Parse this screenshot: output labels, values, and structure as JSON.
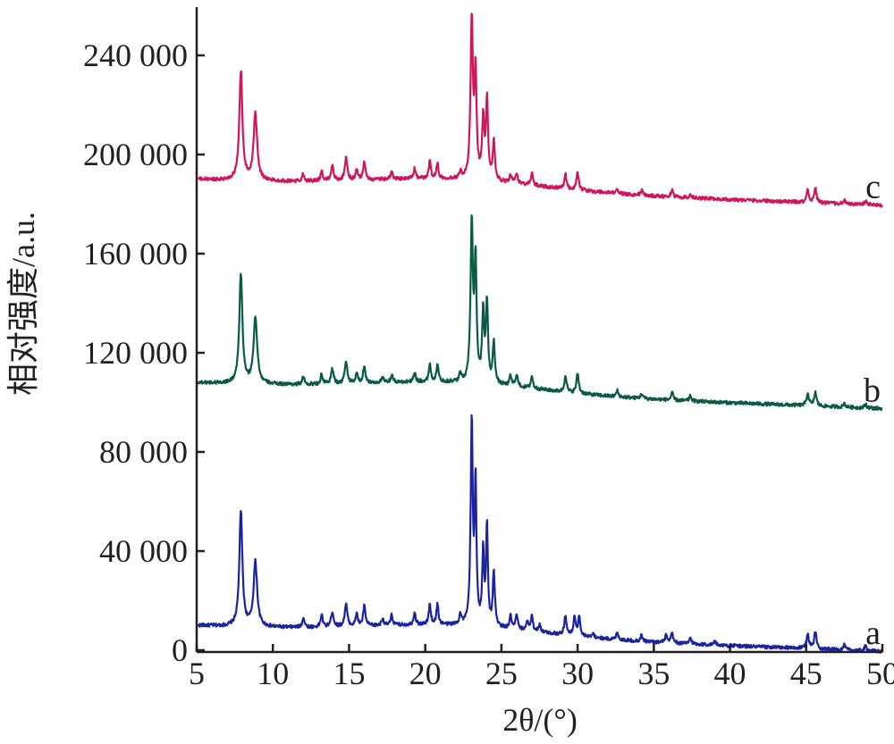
{
  "chart_data": {
    "type": "line",
    "title": "",
    "xlabel": "2θ/(°)",
    "ylabel": "相对强度/a.u.",
    "xlim": [
      5,
      50
    ],
    "ylim": [
      0,
      255000
    ],
    "grid": false,
    "x_ticks": [
      {
        "value": 5,
        "label": "5"
      },
      {
        "value": 10,
        "label": "10"
      },
      {
        "value": 15,
        "label": "15"
      },
      {
        "value": 20,
        "label": "20"
      },
      {
        "value": 25,
        "label": "25"
      },
      {
        "value": 30,
        "label": "30"
      },
      {
        "value": 35,
        "label": "35"
      },
      {
        "value": 40,
        "label": "40"
      },
      {
        "value": 45,
        "label": "45"
      },
      {
        "value": 50,
        "label": "50"
      }
    ],
    "y_ticks": [
      {
        "value": 0,
        "label": "0"
      },
      {
        "value": 40000,
        "label": "40 000"
      },
      {
        "value": 80000,
        "label": "80 000"
      },
      {
        "value": 120000,
        "label": "120 000"
      },
      {
        "value": 160000,
        "label": "160 000"
      },
      {
        "value": 200000,
        "label": "200 000"
      },
      {
        "value": 240000,
        "label": "240 000"
      }
    ],
    "series": [
      {
        "name": "a",
        "color": "#1a23a0",
        "baseline_start": 10000,
        "baseline_end": 1000,
        "peaks": [
          [
            7.9,
            46000,
            0.12
          ],
          [
            8.85,
            26000,
            0.14
          ],
          [
            12.0,
            4000,
            0.08
          ],
          [
            13.2,
            5000,
            0.08
          ],
          [
            13.9,
            6000,
            0.1
          ],
          [
            14.8,
            9000,
            0.1
          ],
          [
            15.5,
            5000,
            0.08
          ],
          [
            16.0,
            8000,
            0.09
          ],
          [
            17.2,
            3000,
            0.08
          ],
          [
            17.8,
            4000,
            0.08
          ],
          [
            19.3,
            5000,
            0.08
          ],
          [
            20.3,
            8000,
            0.08
          ],
          [
            20.8,
            8000,
            0.08
          ],
          [
            22.3,
            4000,
            0.08
          ],
          [
            23.05,
            82000,
            0.08
          ],
          [
            23.3,
            56000,
            0.07
          ],
          [
            23.8,
            30000,
            0.07
          ],
          [
            24.05,
            40000,
            0.07
          ],
          [
            24.5,
            22000,
            0.08
          ],
          [
            25.6,
            5000,
            0.08
          ],
          [
            26.0,
            6000,
            0.08
          ],
          [
            26.7,
            4000,
            0.08
          ],
          [
            27.0,
            6000,
            0.08
          ],
          [
            27.5,
            3000,
            0.08
          ],
          [
            29.2,
            8000,
            0.08
          ],
          [
            29.8,
            8000,
            0.08
          ],
          [
            30.1,
            8000,
            0.08
          ],
          [
            31.0,
            2000,
            0.08
          ],
          [
            32.6,
            3000,
            0.08
          ],
          [
            34.2,
            2500,
            0.08
          ],
          [
            35.8,
            3000,
            0.08
          ],
          [
            36.2,
            4000,
            0.08
          ],
          [
            37.4,
            2500,
            0.08
          ],
          [
            39.0,
            1500,
            0.08
          ],
          [
            45.1,
            6000,
            0.09
          ],
          [
            45.6,
            7000,
            0.09
          ],
          [
            47.5,
            2000,
            0.08
          ],
          [
            48.9,
            2000,
            0.08
          ]
        ]
      },
      {
        "name": "b",
        "color": "#0a5a45",
        "baseline_start": 108000,
        "baseline_end": 99000,
        "peaks": [
          [
            7.9,
            44000,
            0.12
          ],
          [
            8.85,
            27000,
            0.14
          ],
          [
            12.0,
            3000,
            0.08
          ],
          [
            13.2,
            4000,
            0.08
          ],
          [
            13.9,
            6000,
            0.1
          ],
          [
            14.8,
            9000,
            0.1
          ],
          [
            15.5,
            4000,
            0.08
          ],
          [
            16.0,
            7000,
            0.09
          ],
          [
            17.2,
            2000,
            0.08
          ],
          [
            17.8,
            3000,
            0.08
          ],
          [
            19.3,
            4000,
            0.08
          ],
          [
            20.3,
            7000,
            0.08
          ],
          [
            20.8,
            7000,
            0.08
          ],
          [
            22.3,
            3000,
            0.08
          ],
          [
            23.05,
            64000,
            0.09
          ],
          [
            23.3,
            48000,
            0.08
          ],
          [
            23.8,
            28000,
            0.08
          ],
          [
            24.05,
            32000,
            0.08
          ],
          [
            24.5,
            17000,
            0.08
          ],
          [
            25.6,
            4000,
            0.08
          ],
          [
            26.0,
            5000,
            0.08
          ],
          [
            27.0,
            5000,
            0.08
          ],
          [
            29.2,
            7000,
            0.08
          ],
          [
            30.0,
            8000,
            0.09
          ],
          [
            32.6,
            2500,
            0.08
          ],
          [
            34.2,
            2000,
            0.08
          ],
          [
            36.2,
            3000,
            0.08
          ],
          [
            37.4,
            2000,
            0.08
          ],
          [
            45.1,
            5000,
            0.09
          ],
          [
            45.6,
            5500,
            0.09
          ],
          [
            47.5,
            1500,
            0.08
          ],
          [
            48.9,
            1500,
            0.08
          ]
        ]
      },
      {
        "name": "c",
        "color": "#d0155a",
        "baseline_start": 190000,
        "baseline_end": 181000,
        "peaks": [
          [
            7.9,
            44000,
            0.12
          ],
          [
            8.85,
            27000,
            0.14
          ],
          [
            12.0,
            3000,
            0.08
          ],
          [
            13.2,
            4000,
            0.08
          ],
          [
            13.9,
            6000,
            0.1
          ],
          [
            14.8,
            9000,
            0.1
          ],
          [
            15.5,
            4000,
            0.08
          ],
          [
            16.0,
            7000,
            0.09
          ],
          [
            17.8,
            3000,
            0.08
          ],
          [
            19.3,
            4000,
            0.08
          ],
          [
            20.3,
            7000,
            0.08
          ],
          [
            20.8,
            6000,
            0.08
          ],
          [
            22.3,
            3000,
            0.08
          ],
          [
            23.05,
            64000,
            0.09
          ],
          [
            23.3,
            42000,
            0.08
          ],
          [
            23.8,
            24000,
            0.08
          ],
          [
            24.05,
            32000,
            0.08
          ],
          [
            24.5,
            16000,
            0.08
          ],
          [
            25.6,
            3000,
            0.08
          ],
          [
            26.0,
            4000,
            0.08
          ],
          [
            27.0,
            5000,
            0.08
          ],
          [
            29.2,
            6000,
            0.08
          ],
          [
            30.0,
            7000,
            0.09
          ],
          [
            32.6,
            2000,
            0.08
          ],
          [
            34.2,
            2000,
            0.08
          ],
          [
            36.2,
            3000,
            0.08
          ],
          [
            37.4,
            1500,
            0.08
          ],
          [
            45.1,
            5000,
            0.09
          ],
          [
            45.6,
            6000,
            0.09
          ],
          [
            47.5,
            1500,
            0.08
          ],
          [
            48.9,
            1500,
            0.08
          ]
        ]
      }
    ]
  }
}
